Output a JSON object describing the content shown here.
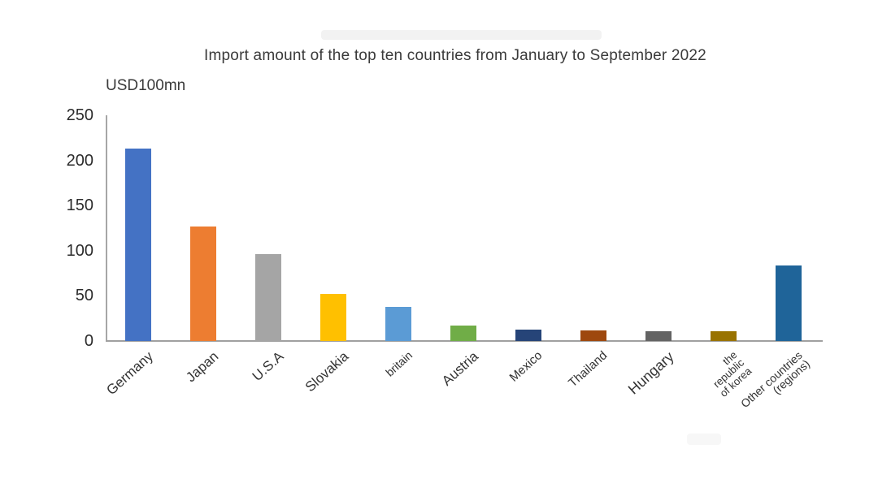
{
  "chart_data": {
    "type": "bar",
    "title": "Import amount of the top ten countries from January to September 2022",
    "unit_label": "USD100mn",
    "xlabel": "",
    "ylabel": "USD100mn",
    "categories": [
      "Germany",
      "Japan",
      "U.S.A",
      "Slovakia",
      "britain",
      "Austria",
      "Mexico",
      "Thailand",
      "Hungary",
      "the republic of korea",
      "Other countries (regions)"
    ],
    "values": [
      213,
      127,
      96,
      52,
      38,
      17,
      13,
      12,
      11,
      11,
      84
    ],
    "bar_colors": [
      "#4472C4",
      "#ED7D31",
      "#A5A5A5",
      "#FFC000",
      "#5B9BD5",
      "#70AD47",
      "#264478",
      "#9E480E",
      "#636363",
      "#997300",
      "#1F6499"
    ],
    "label_lines": [
      [
        "Germany"
      ],
      [
        "Japan"
      ],
      [
        "U.S.A"
      ],
      [
        "Slovakia"
      ],
      [
        "britain"
      ],
      [
        "Austria"
      ],
      [
        "Mexico"
      ],
      [
        "Thailand"
      ],
      [
        "Hungary"
      ],
      [
        "the",
        "republic",
        "of korea"
      ],
      [
        "Other countries",
        "(regions)"
      ]
    ],
    "label_font_sizes": [
      17,
      17,
      17,
      17,
      14,
      17,
      15,
      15,
      18,
      13,
      14
    ],
    "yticks": [
      0,
      50,
      100,
      150,
      200,
      250
    ],
    "ylim": [
      0,
      250
    ],
    "grid": false,
    "legend": "none",
    "axis_color": "#a6a6a6",
    "text_color": "#3a3a3a"
  }
}
